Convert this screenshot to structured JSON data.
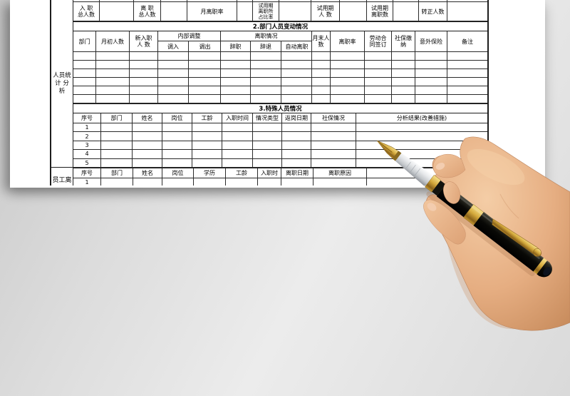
{
  "colors": {
    "background": "#dcdcdc",
    "paper": "#ffffff",
    "grid_line": "#2a2a2a",
    "pen_gold": "#d4a93c",
    "pen_black": "#15150f",
    "pen_grip_silver": "#d9dbdd",
    "skin": "#e8b28c"
  },
  "table": {
    "side_label_top": "人员统\n计 分\n析",
    "side_label_bottom": "员工离",
    "section1": {
      "labels": [
        "入 职\n总人数",
        "离 职\n总人数",
        "月离职率",
        "试用期\n离职所\n占比率",
        "试用期\n人 数",
        "试用期\n离职数",
        "转正人数"
      ]
    },
    "section2": {
      "title": "2.部门人员变动情况",
      "columns_left": [
        "部门",
        "月初人数",
        "新入职\n人 数"
      ],
      "groups": [
        {
          "label": "内部调整",
          "children": [
            "调入",
            "调出"
          ]
        },
        {
          "label": "离职情况",
          "children": [
            "辞职",
            "辞退",
            "自动离职"
          ]
        }
      ],
      "columns_right": [
        "月末人\n数",
        "离职率",
        "劳动合\n同签订",
        "社保缴\n纳",
        "意外保险",
        "备注"
      ],
      "empty_row_count": 6
    },
    "section3": {
      "title": "3.特殊人员情况",
      "columns": [
        "序号",
        "部门",
        "姓名",
        "岗位",
        "工龄",
        "入职时间",
        "情况类型",
        "返岗日期",
        "社保情况",
        "分析结果(改善措施)"
      ],
      "row_numbers": [
        "1",
        "2",
        "3",
        "4",
        "5"
      ]
    },
    "section4": {
      "columns": [
        "序号",
        "部门",
        "姓名",
        "岗位",
        "学历",
        "工龄",
        "入职时",
        "离职日期",
        "离职原因"
      ],
      "row_numbers": [
        "1"
      ]
    }
  }
}
